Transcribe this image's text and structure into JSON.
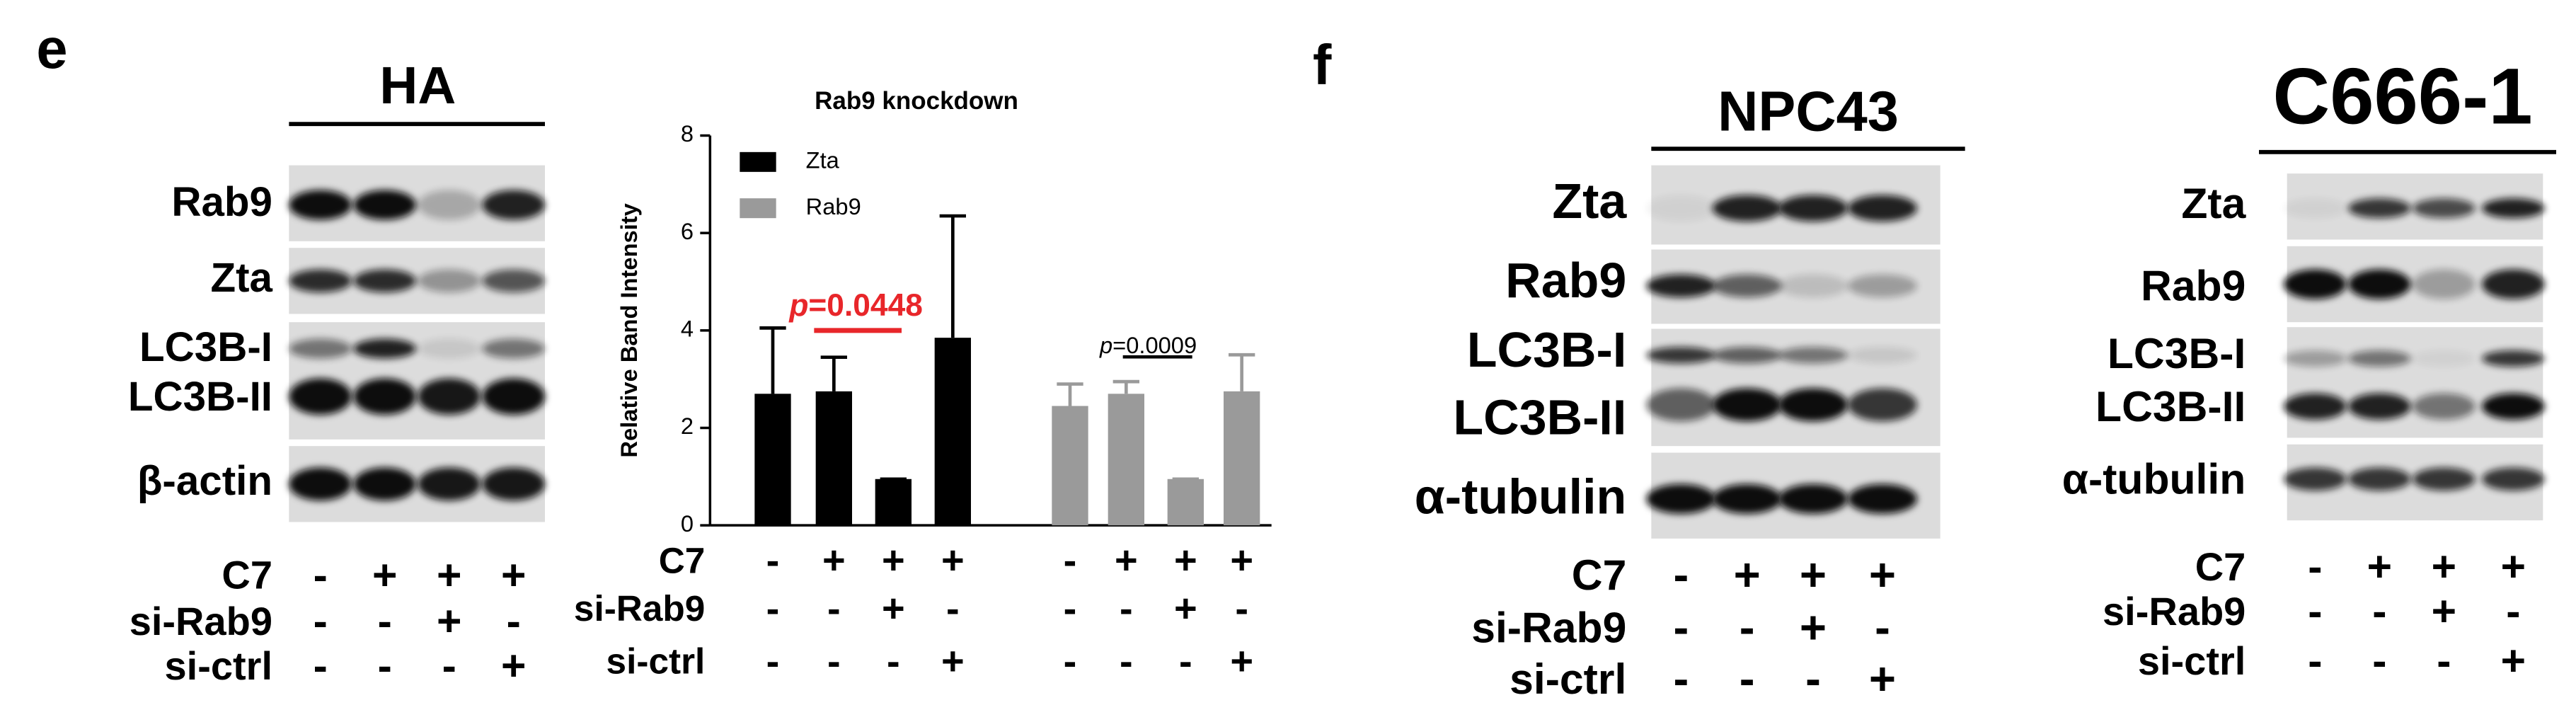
{
  "panel_e": {
    "letter": "e",
    "blot": {
      "title": "HA",
      "rows": [
        "Rab9",
        "Zta",
        "LC3B-I",
        "LC3B-II",
        "β-actin"
      ],
      "treatments": [
        {
          "name": "C7",
          "signs": [
            "-",
            "+",
            "+",
            "+"
          ]
        },
        {
          "name": "si-Rab9",
          "signs": [
            "-",
            "-",
            "+",
            "-"
          ]
        },
        {
          "name": "si-ctrl",
          "signs": [
            "-",
            "-",
            "-",
            "+"
          ]
        }
      ]
    }
  },
  "chart_data": {
    "type": "bar",
    "title": "Rab9 knockdown",
    "y_label": "Relative Band Intensity",
    "ylim": [
      0,
      8
    ],
    "yticks": [
      0,
      2,
      4,
      6,
      8
    ],
    "legend": "upper left",
    "series": [
      {
        "name": "Zta",
        "color": "#000000",
        "values": [
          2.7,
          2.75,
          0.95,
          3.85
        ],
        "errors": [
          1.35,
          0.7,
          0,
          2.5
        ]
      },
      {
        "name": "Rab9",
        "color": "#9a9a9a",
        "values": [
          2.45,
          2.7,
          0.95,
          2.75
        ],
        "errors": [
          0.45,
          0.25,
          0,
          0.75
        ]
      }
    ],
    "annotations": [
      {
        "p": "p",
        "text": "=0.0448",
        "color": "#e8262a"
      },
      {
        "p": "p",
        "text": "=0.0009",
        "color": "#000000"
      }
    ],
    "treatments": [
      {
        "name": "C7",
        "signs": [
          "-",
          "+",
          "+",
          "+",
          "-",
          "+",
          "+",
          "+"
        ]
      },
      {
        "name": "si-Rab9",
        "signs": [
          "-",
          "-",
          "+",
          "-",
          "-",
          "-",
          "+",
          "-"
        ]
      },
      {
        "name": "si-ctrl",
        "signs": [
          "-",
          "-",
          "-",
          "+",
          "-",
          "-",
          "-",
          "+"
        ]
      }
    ]
  },
  "panel_f": {
    "letter": "f",
    "blots": [
      {
        "title": "NPC43",
        "rows": [
          "Zta",
          "Rab9",
          "LC3B-I",
          "LC3B-II",
          "α-tubulin"
        ],
        "treatments": [
          {
            "name": "C7",
            "signs": [
              "-",
              "+",
              "+",
              "+"
            ]
          },
          {
            "name": "si-Rab9",
            "signs": [
              "-",
              "-",
              "+",
              "-"
            ]
          },
          {
            "name": "si-ctrl",
            "signs": [
              "-",
              "-",
              "-",
              "+"
            ]
          }
        ]
      },
      {
        "title": "C666-1",
        "rows": [
          "Zta",
          "Rab9",
          "LC3B-I",
          "LC3B-II",
          "α-tubulin"
        ],
        "treatments": [
          {
            "name": "C7",
            "signs": [
              "-",
              "+",
              "+",
              "+"
            ]
          },
          {
            "name": "si-Rab9",
            "signs": [
              "-",
              "-",
              "+",
              "-"
            ]
          },
          {
            "name": "si-ctrl",
            "signs": [
              "-",
              "-",
              "-",
              "+"
            ]
          }
        ]
      }
    ]
  }
}
